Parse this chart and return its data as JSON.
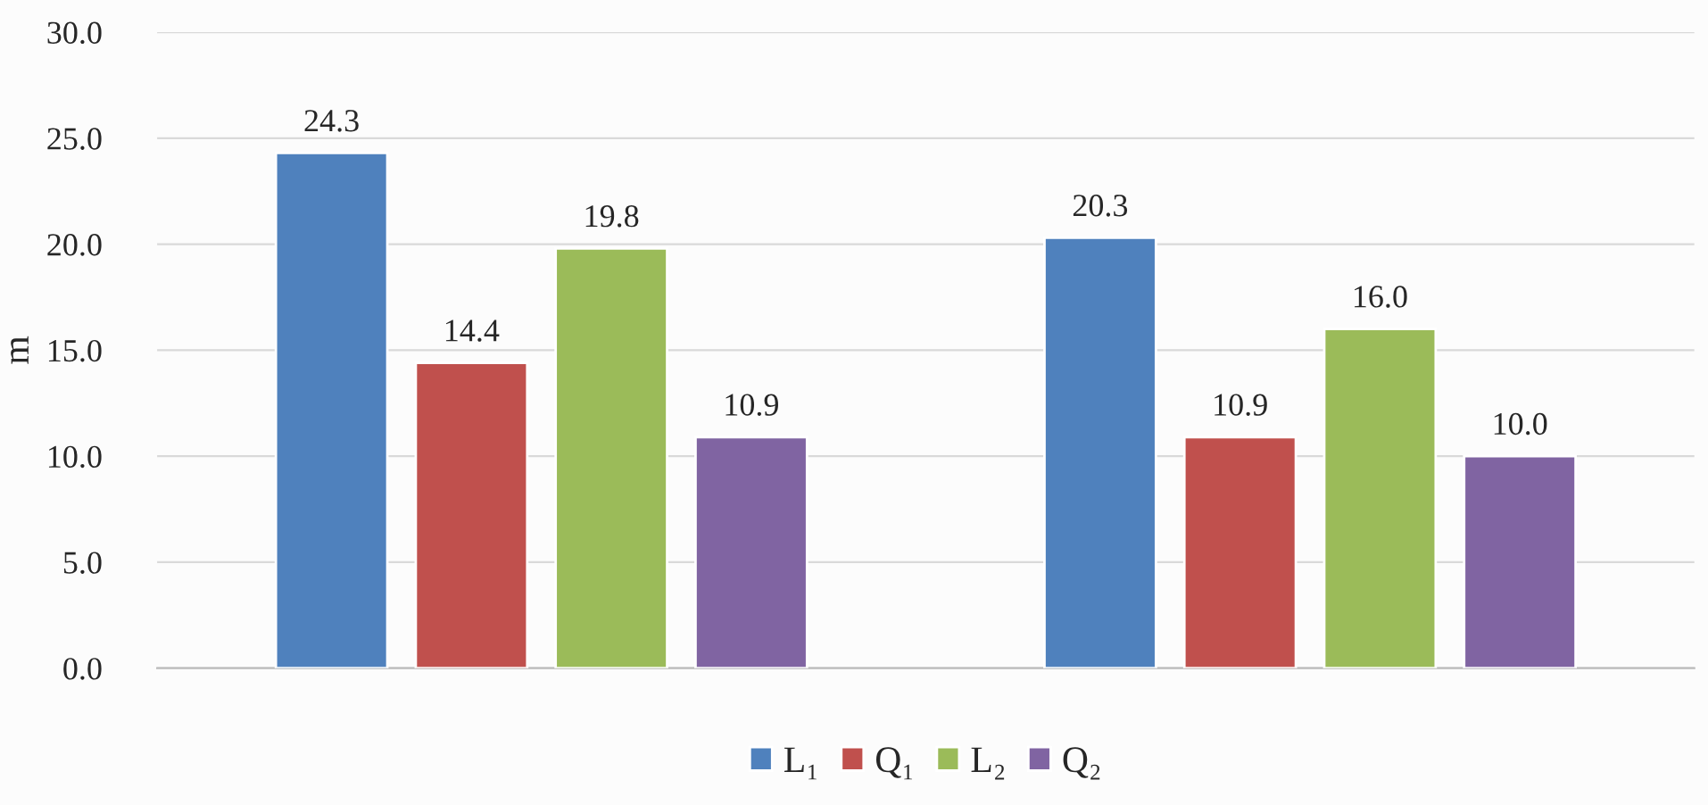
{
  "chart_data": {
    "type": "bar",
    "ylabel": "m",
    "categories": [
      null,
      null
    ],
    "series": [
      {
        "name": "L₁",
        "color": "#4f81bd",
        "values": [
          24.3,
          20.3
        ],
        "value_labels": [
          "24.3",
          "20.3"
        ]
      },
      {
        "name": "Q₁",
        "color": "#c0504d",
        "values": [
          14.4,
          10.9
        ],
        "value_labels": [
          "14.4",
          "10.9"
        ]
      },
      {
        "name": "L₂",
        "color": "#9bbb59",
        "values": [
          19.8,
          16
        ],
        "value_labels": [
          "19.8",
          "16.0"
        ]
      },
      {
        "name": "Q₂",
        "color": "#8064a2",
        "values": [
          10.9,
          10
        ],
        "value_labels": [
          "10.9",
          "10.0"
        ]
      }
    ],
    "ylim": [
      0,
      30
    ],
    "yticks": [
      {
        "value": 0,
        "label": "0.0"
      },
      {
        "value": 5,
        "label": "5.0"
      },
      {
        "value": 10,
        "label": "10.0"
      },
      {
        "value": 15,
        "label": "15.0"
      },
      {
        "value": 20,
        "label": "20.0"
      },
      {
        "value": 25,
        "label": "25.0"
      },
      {
        "value": 30,
        "label": "30.0"
      }
    ],
    "grid": "y",
    "legend": "bottom"
  }
}
